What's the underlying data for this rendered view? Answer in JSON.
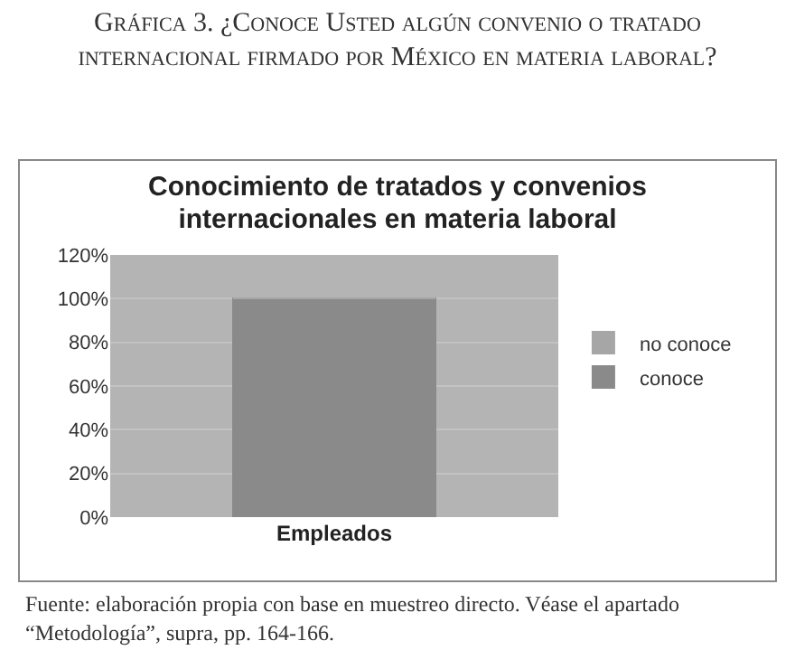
{
  "chart_data": {
    "type": "bar",
    "title": "Gráfica 3. ¿Conoce Usted algún convenio o tratado internacional firmado por México en materia laboral?",
    "subtitle": "Conocimiento de tratados y convenios internacionales en materia laboral",
    "categories": [
      "Empleados"
    ],
    "stacked": true,
    "series": [
      {
        "name": "conoce",
        "color": "#8a8a8a",
        "values": [
          100
        ]
      },
      {
        "name": "no conoce",
        "color": "#a6a6a6",
        "values": [
          0
        ]
      }
    ],
    "ylim": [
      0,
      120
    ],
    "yticks": [
      {
        "value": 0,
        "label": "0%"
      },
      {
        "value": 20,
        "label": "20%"
      },
      {
        "value": 40,
        "label": "40%"
      },
      {
        "value": 60,
        "label": "60%"
      },
      {
        "value": 80,
        "label": "80%"
      },
      {
        "value": 100,
        "label": "100%"
      },
      {
        "value": 120,
        "label": "120%"
      }
    ],
    "grid": "y",
    "legend": "right",
    "annotations": [
      "Fuente: elaboración propia con base en muestreo directo. Véase el apartado “Metodología”, supra, pp. 164-166."
    ]
  }
}
